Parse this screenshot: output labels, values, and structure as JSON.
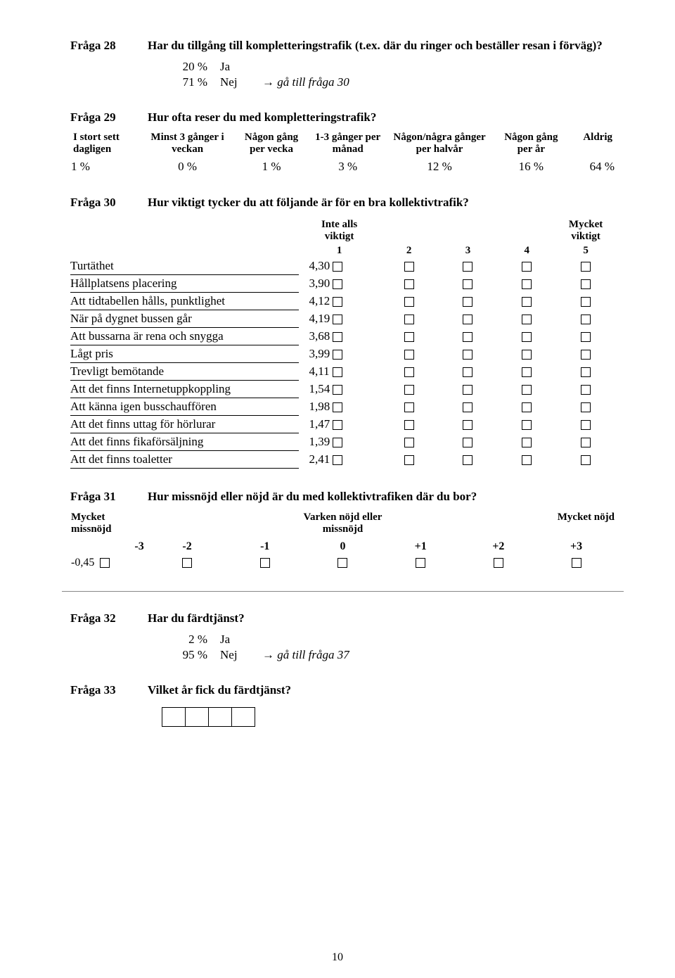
{
  "q28": {
    "label": "Fråga 28",
    "text": "Har du tillgång till kompletteringstrafik (t.ex. där du ringer och beställer resan i förväg)?",
    "answers": [
      {
        "pct": "20 %",
        "label": "Ja",
        "goto": ""
      },
      {
        "pct": "71 %",
        "label": "Nej",
        "goto": "gå till fråga 30"
      }
    ]
  },
  "q29": {
    "label": "Fråga 29",
    "text": "Hur ofta reser du med kompletteringstrafik?",
    "headers": [
      "I stort sett dagligen",
      "Minst 3 gånger i veckan",
      "Någon gång per vecka",
      "1-3 gånger per månad",
      "Någon/några gånger per halvår",
      "Någon gång per år",
      "Aldrig"
    ],
    "values": [
      "1 %",
      "0 %",
      "1 %",
      "3 %",
      "12 %",
      "16 %",
      "64 %"
    ]
  },
  "q30": {
    "label": "Fråga 30",
    "text": "Hur viktigt tycker du att följande är för en bra kollektivtrafik?",
    "hdr_left_1": "Inte alls",
    "hdr_left_2": "viktigt",
    "hdr_right_1": "Mycket",
    "hdr_right_2": "viktigt",
    "scale": [
      "1",
      "2",
      "3",
      "4",
      "5"
    ],
    "items": [
      {
        "label": "Turtäthet",
        "val": "4,30"
      },
      {
        "label": "Hållplatsens placering",
        "val": "3,90"
      },
      {
        "label": "Att tidtabellen hålls, punktlighet",
        "val": "4,12"
      },
      {
        "label": "När på dygnet bussen går",
        "val": "4,19"
      },
      {
        "label": "Att bussarna är rena och snygga",
        "val": "3,68"
      },
      {
        "label": "Lågt pris",
        "val": "3,99"
      },
      {
        "label": "Trevligt bemötande",
        "val": "4,11"
      },
      {
        "label": "Att det finns Internetuppkoppling",
        "val": "1,54"
      },
      {
        "label": "Att känna igen busschauffören",
        "val": "1,98"
      },
      {
        "label": "Att det finns uttag för hörlurar",
        "val": "1,47"
      },
      {
        "label": "Att det finns fikaförsäljning",
        "val": "1,39"
      },
      {
        "label": "Att det finns toaletter",
        "val": "2,41"
      }
    ]
  },
  "q31": {
    "label": "Fråga 31",
    "text": "Hur missnöjd eller nöjd är du med kollektivtrafiken där du bor?",
    "hdr_left_1": "Mycket",
    "hdr_left_2": "missnöjd",
    "hdr_mid_1": "Varken nöjd eller",
    "hdr_mid_2": "missnöjd",
    "hdr_right": "Mycket nöjd",
    "scale": [
      "-3",
      "-2",
      "-1",
      "0",
      "+1",
      "+2",
      "+3"
    ],
    "result": "-0,45"
  },
  "q32": {
    "label": "Fråga 32",
    "text": "Har du färdtjänst?",
    "answers": [
      {
        "pct": "2 %",
        "label": "Ja",
        "goto": ""
      },
      {
        "pct": "95 %",
        "label": "Nej",
        "goto": "gå till fråga 37"
      }
    ]
  },
  "q33": {
    "label": "Fråga 33",
    "text": "Vilket år fick du färdtjänst?"
  },
  "page_number": "10"
}
